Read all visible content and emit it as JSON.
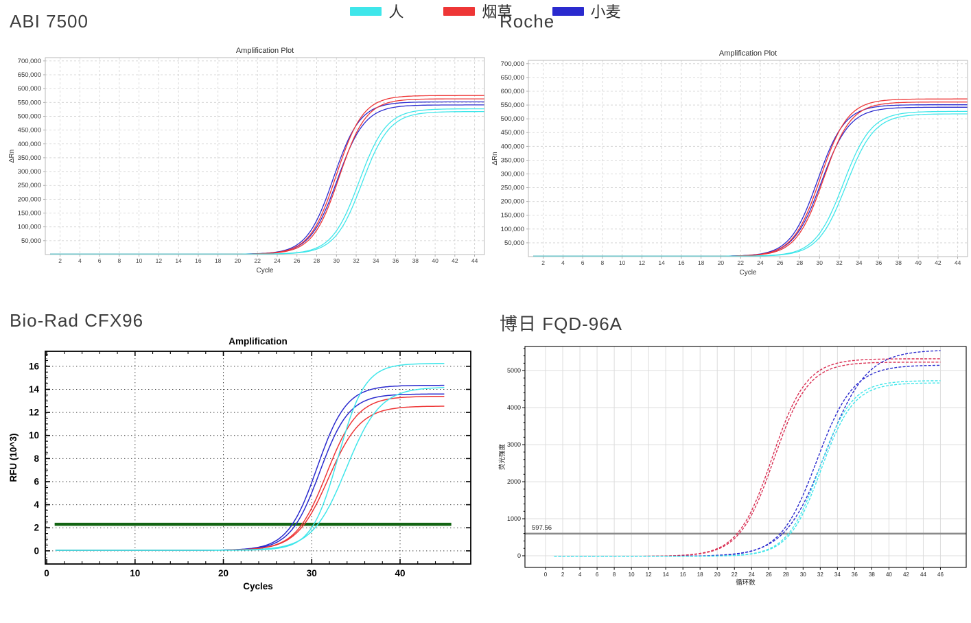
{
  "page": {
    "background": "#ffffff"
  },
  "legend": {
    "items": [
      {
        "label": "人",
        "color": "#3fe6ea"
      },
      {
        "label": "烟草",
        "color": "#ee3636"
      },
      {
        "label": "小麦",
        "color": "#2a2ace"
      }
    ]
  },
  "chart_data": [
    {
      "id": "abi7500",
      "type": "line",
      "heading": "ABI 7500",
      "title": "Amplification Plot",
      "xlabel": "Cycle",
      "ylabel": "ΔRn",
      "xlim": [
        0.5,
        45.0
      ],
      "ylim": [
        0,
        712000
      ],
      "xticks": [
        2,
        4,
        6,
        8,
        10,
        12,
        14,
        16,
        18,
        20,
        22,
        24,
        26,
        28,
        30,
        32,
        34,
        36,
        38,
        40,
        42,
        44
      ],
      "yticks": [
        50000,
        100000,
        150000,
        200000,
        250000,
        300000,
        350000,
        400000,
        450000,
        500000,
        550000,
        600000,
        650000,
        700000
      ],
      "ytick_format": "comma",
      "threshold": null,
      "curve_model": "sigmoid",
      "series": [
        {
          "name": "小麦-1",
          "color": "#2a2ace",
          "base": 1500,
          "plateau": 552000,
          "midpoint": 29.7,
          "slope": 0.74,
          "x_start": 1,
          "x_end": 45
        },
        {
          "name": "小麦-2",
          "color": "#2a2ace",
          "base": 1500,
          "plateau": 541000,
          "midpoint": 30.1,
          "slope": 0.72,
          "x_start": 1,
          "x_end": 45
        },
        {
          "name": "烟草-1",
          "color": "#ee3636",
          "base": 1500,
          "plateau": 575000,
          "midpoint": 30.0,
          "slope": 0.74,
          "x_start": 1,
          "x_end": 45
        },
        {
          "name": "烟草-2",
          "color": "#ee3636",
          "base": 1500,
          "plateau": 563000,
          "midpoint": 30.3,
          "slope": 0.74,
          "x_start": 1,
          "x_end": 45
        },
        {
          "name": "人-1",
          "color": "#3fe6ea",
          "base": 1500,
          "plateau": 527000,
          "midpoint": 32.3,
          "slope": 0.72,
          "x_start": 1,
          "x_end": 45
        },
        {
          "name": "人-2",
          "color": "#3fe6ea",
          "base": 1500,
          "plateau": 517000,
          "midpoint": 32.6,
          "slope": 0.72,
          "x_start": 1,
          "x_end": 45
        }
      ]
    },
    {
      "id": "roche",
      "type": "line",
      "heading": "Roche",
      "title": "Amplification Plot",
      "xlabel": "Cycle",
      "ylabel": "ΔRn",
      "xlim": [
        0.5,
        45.0
      ],
      "ylim": [
        0,
        712000
      ],
      "xticks": [
        2,
        4,
        6,
        8,
        10,
        12,
        14,
        16,
        18,
        20,
        22,
        24,
        26,
        28,
        30,
        32,
        34,
        36,
        38,
        40,
        42,
        44
      ],
      "yticks": [
        50000,
        100000,
        150000,
        200000,
        250000,
        300000,
        350000,
        400000,
        450000,
        500000,
        550000,
        600000,
        650000,
        700000
      ],
      "ytick_format": "comma",
      "threshold": null,
      "curve_model": "sigmoid",
      "series": [
        {
          "name": "小麦-1",
          "color": "#2a2ace",
          "base": 1500,
          "plateau": 551000,
          "midpoint": 29.8,
          "slope": 0.72,
          "x_start": 1,
          "x_end": 45
        },
        {
          "name": "小麦-2",
          "color": "#2a2ace",
          "base": 1500,
          "plateau": 542000,
          "midpoint": 30.2,
          "slope": 0.7,
          "x_start": 1,
          "x_end": 45
        },
        {
          "name": "烟草-1",
          "color": "#ee3636",
          "base": 1500,
          "plateau": 572000,
          "midpoint": 30.1,
          "slope": 0.72,
          "x_start": 1,
          "x_end": 45
        },
        {
          "name": "烟草-2",
          "color": "#ee3636",
          "base": 1500,
          "plateau": 561000,
          "midpoint": 30.4,
          "slope": 0.72,
          "x_start": 1,
          "x_end": 45
        },
        {
          "name": "人-1",
          "color": "#3fe6ea",
          "base": 1500,
          "plateau": 527000,
          "midpoint": 32.4,
          "slope": 0.7,
          "x_start": 1,
          "x_end": 45
        },
        {
          "name": "人-2",
          "color": "#3fe6ea",
          "base": 1500,
          "plateau": 518000,
          "midpoint": 32.7,
          "slope": 0.7,
          "x_start": 1,
          "x_end": 45
        }
      ]
    },
    {
      "id": "cfx96",
      "type": "line",
      "heading": "Bio-Rad CFX96",
      "title": "Amplification",
      "xlabel": "Cycles",
      "ylabel": "RFU (10^3)",
      "xlim": [
        -0.16,
        48.0
      ],
      "ylim": [
        -1.14,
        17.3
      ],
      "xticks": [
        0,
        10,
        20,
        30,
        40
      ],
      "yticks": [
        0,
        2,
        4,
        6,
        8,
        10,
        12,
        14,
        16
      ],
      "ytick_format": "plain",
      "threshold": {
        "value": 2.3,
        "label": null,
        "color": "#136413",
        "x_start": 0.9,
        "x_end": 45.8,
        "width": 4.5
      },
      "curve_model": "sigmoid",
      "series": [
        {
          "name": "小麦-1",
          "color": "#2a2ace",
          "base": 0.05,
          "plateau": 14.35,
          "midpoint": 30.6,
          "slope": 0.6,
          "x_start": 1,
          "x_end": 45
        },
        {
          "name": "小麦-2",
          "color": "#2a2ace",
          "base": 0.05,
          "plateau": 13.6,
          "midpoint": 30.9,
          "slope": 0.6,
          "x_start": 1,
          "x_end": 45
        },
        {
          "name": "烟草-1",
          "color": "#ee3636",
          "base": 0.05,
          "plateau": 13.4,
          "midpoint": 31.7,
          "slope": 0.57,
          "x_start": 1,
          "x_end": 45
        },
        {
          "name": "烟草-2",
          "color": "#ee3636",
          "base": 0.05,
          "plateau": 12.55,
          "midpoint": 31.9,
          "slope": 0.55,
          "x_start": 1,
          "x_end": 45
        },
        {
          "name": "人-1",
          "color": "#3fe6ea",
          "base": 0.05,
          "plateau": 16.25,
          "midpoint": 33.0,
          "slope": 0.66,
          "x_start": 1,
          "x_end": 45
        },
        {
          "name": "人-2",
          "color": "#3fe6ea",
          "base": 0.05,
          "plateau": 14.2,
          "midpoint": 33.9,
          "slope": 0.52,
          "x_start": 1,
          "x_end": 45
        }
      ]
    },
    {
      "id": "fqd96a",
      "type": "line",
      "heading": "博日 FQD-96A",
      "title": null,
      "xlabel": "循环数",
      "ylabel": "荧光强度",
      "xlim": [
        -2.4,
        49.0
      ],
      "ylim": [
        -315,
        5652
      ],
      "xticks": [
        0,
        2,
        4,
        6,
        8,
        10,
        12,
        14,
        16,
        18,
        20,
        22,
        24,
        26,
        28,
        30,
        32,
        34,
        36,
        38,
        40,
        42,
        44,
        46
      ],
      "yticks": [
        0,
        1000,
        2000,
        3000,
        4000,
        5000
      ],
      "ytick_format": "plain",
      "threshold": {
        "value": 597.56,
        "label": "597.56",
        "color": "#8a8a8a",
        "x_start": -2.4,
        "x_end": 49.0,
        "width": 2.5
      },
      "curve_model": "sigmoid",
      "series": [
        {
          "name": "烟草-1",
          "color": "#d92e52",
          "base": -15,
          "plateau": 5320,
          "midpoint": 26.4,
          "slope": 0.5,
          "x_start": 1,
          "x_end": 46
        },
        {
          "name": "烟草-2",
          "color": "#d92e52",
          "base": -15,
          "plateau": 5230,
          "midpoint": 26.6,
          "slope": 0.5,
          "x_start": 1,
          "x_end": 46
        },
        {
          "name": "小麦-1",
          "color": "#2a2ace",
          "base": -15,
          "plateau": 5560,
          "midpoint": 32.6,
          "slope": 0.42,
          "x_start": 1,
          "x_end": 46
        },
        {
          "name": "小麦-2",
          "color": "#2a2ace",
          "base": -15,
          "plateau": 5150,
          "midpoint": 31.6,
          "slope": 0.47,
          "x_start": 1,
          "x_end": 46
        },
        {
          "name": "人-1",
          "color": "#3fe6ea",
          "base": -15,
          "plateau": 4730,
          "midpoint": 31.9,
          "slope": 0.53,
          "x_start": 1,
          "x_end": 46
        },
        {
          "name": "人-2",
          "color": "#3fe6ea",
          "base": -15,
          "plateau": 4670,
          "midpoint": 32.1,
          "slope": 0.53,
          "x_start": 1,
          "x_end": 46
        }
      ]
    }
  ]
}
